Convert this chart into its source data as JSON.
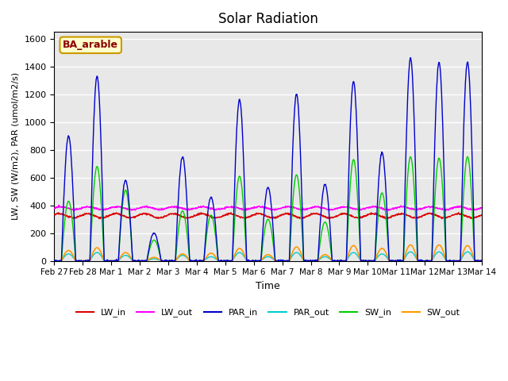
{
  "title": "Solar Radiation",
  "xlabel": "Time",
  "ylabel": "LW, SW (W/m2), PAR (umol/m2/s)",
  "annotation": "BA_arable",
  "ylim": [
    0,
    1650
  ],
  "yticks": [
    0,
    200,
    400,
    600,
    800,
    1000,
    1200,
    1400,
    1600
  ],
  "xtick_positions": [
    0,
    1,
    2,
    3,
    4,
    5,
    6,
    7,
    8,
    9,
    10,
    11,
    12,
    13,
    14,
    15
  ],
  "xtick_labels": [
    "Feb 27",
    "Feb 28",
    "Mar 1",
    "Mar 2",
    "Mar 3",
    "Mar 4",
    "Mar 5",
    "Mar 6",
    "Mar 7",
    "Mar 8",
    "Mar 9",
    "Mar 10",
    "Mar 11",
    "Mar 12",
    "Mar 13",
    "Mar 14"
  ],
  "colors": {
    "LW_in": "#dd0000",
    "LW_out": "#ff00ff",
    "PAR_in": "#0000cc",
    "PAR_out": "#00cccc",
    "SW_in": "#00cc00",
    "SW_out": "#ff9900"
  },
  "background_color": "#e8e8e8",
  "n_days": 15,
  "points_per_day": 96,
  "par_in_peaks": [
    900,
    1330,
    580,
    200,
    750,
    460,
    1160,
    530,
    1200,
    550,
    1290,
    780,
    1460,
    1430,
    1430
  ],
  "sw_in_peaks": [
    430,
    680,
    510,
    150,
    360,
    330,
    610,
    300,
    620,
    280,
    730,
    490,
    750,
    740,
    750
  ],
  "sw_out_peaks": [
    75,
    95,
    60,
    25,
    50,
    55,
    90,
    45,
    100,
    45,
    110,
    90,
    115,
    115,
    110
  ],
  "par_out_peaks": [
    50,
    60,
    40,
    15,
    40,
    30,
    60,
    30,
    60,
    30,
    60,
    50,
    65,
    65,
    65
  ],
  "lw_in_base": 325,
  "lw_out_base": 380
}
